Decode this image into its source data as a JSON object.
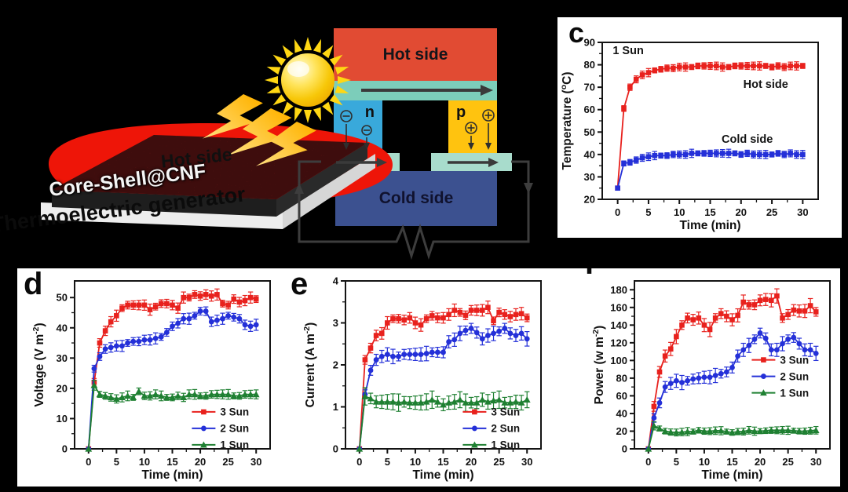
{
  "figure": {
    "panel_labels": {
      "c": "c",
      "d": "d",
      "e": "e",
      "f": "f"
    },
    "illustration": {
      "hot_side_label": "Hot side",
      "core_shell_label": "Core-Shell@CNF",
      "generator_label": "Thermoelectric generator"
    },
    "schematic": {
      "hot_label": "Hot side",
      "cold_label": "Cold side",
      "n_label": "n",
      "p_label": "p",
      "colors": {
        "hot": "#E14B33",
        "top_electrode": "#7CCDBA",
        "n_leg": "#39A9DB",
        "p_leg": "#FFC30F",
        "bottom_electrode": "#A8DCCC",
        "cold": "#3C5190",
        "wire": "#3D3D3D"
      }
    }
  },
  "chart_data": [
    {
      "id": "c",
      "type": "line",
      "xlabel": "Time (min)",
      "ylabel": {
        "pre": "Temperature (",
        "sup": "o",
        "post": "C)"
      },
      "xlim": [
        -2.5,
        32.5
      ],
      "ylim": [
        20,
        90
      ],
      "xticks": [
        0,
        5,
        10,
        15,
        20,
        25,
        30
      ],
      "yticks": [
        20,
        30,
        40,
        50,
        60,
        70,
        80,
        90
      ],
      "x_start": 0,
      "x_step": 1,
      "grid": false,
      "legend": null,
      "annotations": [
        {
          "text": "1 Sun",
          "x": -0.8,
          "y": 86.5,
          "anchor": "start"
        },
        {
          "text": "Hot side",
          "x": 24,
          "y": 71.5,
          "anchor": "middle"
        },
        {
          "text": "Cold side",
          "x": 21,
          "y": 47,
          "anchor": "middle"
        }
      ],
      "series": [
        {
          "name": "Hot side",
          "color": "#E8211D",
          "marker": "square",
          "err": 1.6,
          "values": [
            25,
            60.5,
            70,
            73.5,
            75.5,
            76.5,
            77.5,
            78,
            78.5,
            78.5,
            79,
            79,
            79,
            79.5,
            79.5,
            79.5,
            79.5,
            79,
            79,
            79.5,
            79.5,
            79.5,
            79.5,
            79.5,
            79.5,
            79,
            79.5,
            79,
            79.5,
            79.5,
            79.5
          ]
        },
        {
          "name": "Cold side",
          "color": "#2430D8",
          "marker": "square",
          "err": 1.6,
          "values": [
            25,
            36,
            36.5,
            37.5,
            38.5,
            39,
            39.5,
            39.5,
            39.5,
            40,
            40,
            40,
            40.5,
            40.5,
            40.5,
            40.5,
            40.5,
            40.5,
            40.5,
            40.5,
            40,
            40.5,
            40,
            40,
            40,
            40,
            40.5,
            40,
            40.5,
            40,
            40
          ]
        }
      ]
    },
    {
      "id": "d",
      "type": "line",
      "xlabel": "Time (min)",
      "ylabel": {
        "pre": "Voltage (V m",
        "sup": "-2",
        "post": ")"
      },
      "xlim": [
        -2.5,
        32.5
      ],
      "ylim": [
        0,
        55.5
      ],
      "xticks": [
        0,
        5,
        10,
        15,
        20,
        25,
        30
      ],
      "yticks": [
        0,
        10,
        20,
        30,
        40,
        50
      ],
      "x_start": 0,
      "x_step": 1,
      "grid": false,
      "legend": {
        "position": "inside-bottom-right"
      },
      "annotations": [],
      "series": [
        {
          "name": "3 Sun",
          "color": "#E8211D",
          "marker": "square",
          "err": 1.6,
          "values": [
            0,
            22,
            35,
            39,
            42,
            44,
            46.5,
            47.5,
            47.5,
            47.5,
            47.5,
            46,
            47,
            48,
            48,
            47.5,
            46.5,
            50,
            50,
            51,
            50.5,
            51,
            50.5,
            51,
            48,
            47.5,
            49.5,
            48.5,
            49,
            50,
            49.5
          ]
        },
        {
          "name": "2 Sun",
          "color": "#2430D8",
          "marker": "circle",
          "err": 1.6,
          "values": [
            0,
            26.5,
            30.5,
            33,
            33.5,
            34,
            34,
            35,
            35.5,
            35.5,
            36,
            36,
            36.5,
            37,
            38.5,
            40.5,
            41.5,
            43,
            43,
            44,
            45.5,
            45.5,
            42,
            42.5,
            43,
            44,
            43.5,
            43,
            41,
            40.5,
            41
          ]
        },
        {
          "name": "1 Sun",
          "color": "#1F8032",
          "marker": "triangle",
          "err": 1.4,
          "values": [
            0,
            21,
            18,
            17.5,
            17,
            16.5,
            17,
            17.5,
            17,
            19,
            17.5,
            17.5,
            18,
            17.5,
            17,
            17,
            17.5,
            17,
            18,
            18,
            17.5,
            17.5,
            18,
            18,
            18,
            18,
            17.5,
            17.5,
            18,
            18,
            18
          ]
        }
      ]
    },
    {
      "id": "e",
      "type": "line",
      "xlabel": "Time (min)",
      "ylabel": {
        "pre": "Current (A m",
        "sup": "-2",
        "post": ")"
      },
      "xlim": [
        -2.5,
        32.5
      ],
      "ylim": [
        0,
        4
      ],
      "xticks": [
        0,
        5,
        10,
        15,
        20,
        25,
        30
      ],
      "yticks": [
        0,
        1,
        2,
        3,
        4
      ],
      "x_start": 0,
      "x_step": 1,
      "grid": false,
      "legend": {
        "position": "inside-bottom-right"
      },
      "annotations": [],
      "series": [
        {
          "name": "3 Sun",
          "color": "#E8211D",
          "marker": "square",
          "err": 0.13,
          "values": [
            0,
            2.12,
            2.4,
            2.7,
            2.75,
            3,
            3.1,
            3.1,
            3.07,
            3.12,
            3,
            2.95,
            3.1,
            3.17,
            3.12,
            3.12,
            3.2,
            3.3,
            3.25,
            3.18,
            3.3,
            3.3,
            3.3,
            3.37,
            3.05,
            3.25,
            3.2,
            3.15,
            3.2,
            3.22,
            3.12
          ]
        },
        {
          "name": "2 Sun",
          "color": "#2430D8",
          "marker": "circle",
          "err": 0.15,
          "values": [
            0,
            1.3,
            1.87,
            2.12,
            2.2,
            2.25,
            2.2,
            2.2,
            2.25,
            2.25,
            2.25,
            2.25,
            2.27,
            2.3,
            2.3,
            2.3,
            2.55,
            2.6,
            2.75,
            2.82,
            2.87,
            2.77,
            2.62,
            2.7,
            2.75,
            2.8,
            2.87,
            2.75,
            2.7,
            2.75,
            2.62
          ]
        },
        {
          "name": "1 Sun",
          "color": "#1F8032",
          "marker": "triangle",
          "err": 0.18,
          "values": [
            0,
            1.25,
            1.2,
            1.12,
            1.12,
            1.12,
            1.12,
            1.1,
            1.12,
            1.1,
            1.1,
            1.1,
            1.12,
            1.17,
            1.12,
            1.05,
            1.1,
            1.12,
            1.17,
            1.1,
            1.1,
            1.1,
            1.17,
            1.12,
            1.15,
            1.17,
            1.1,
            1.1,
            1.12,
            1.1,
            1.17
          ]
        }
      ]
    },
    {
      "id": "f",
      "type": "line",
      "xlabel": "Time (min)",
      "ylabel": {
        "pre": "Power (w m",
        "sup": "-2",
        "post": ")"
      },
      "xlim": [
        -2.5,
        32.5
      ],
      "ylim": [
        0,
        190
      ],
      "xticks": [
        0,
        5,
        10,
        15,
        20,
        25,
        30
      ],
      "yticks": [
        0,
        20,
        40,
        60,
        80,
        100,
        120,
        140,
        160,
        180
      ],
      "x_start": 0,
      "x_step": 1,
      "grid": false,
      "legend": {
        "position": "inside-right-middle"
      },
      "annotations": [],
      "series": [
        {
          "name": "3 Sun",
          "color": "#E8211D",
          "marker": "square",
          "err": 7,
          "values": [
            0,
            48,
            87,
            105,
            113,
            127,
            140,
            148,
            146,
            148,
            140,
            135,
            148,
            153,
            150,
            146,
            151,
            166,
            163,
            163,
            168,
            169,
            168,
            173,
            148,
            152,
            157,
            156,
            156,
            162,
            155
          ]
        },
        {
          "name": "2 Sun",
          "color": "#2430D8",
          "marker": "circle",
          "err": 7,
          "values": [
            0,
            35,
            52,
            70,
            74,
            77,
            75,
            77,
            79,
            80,
            81,
            81,
            83,
            85,
            87,
            92,
            105,
            112,
            117,
            124,
            131,
            125,
            112,
            112,
            119,
            124,
            126,
            119,
            112,
            112,
            108
          ]
        },
        {
          "name": "1 Sun",
          "color": "#1F8032",
          "marker": "triangle",
          "err": 4,
          "values": [
            0,
            26,
            23,
            20,
            19,
            18.5,
            19,
            19.5,
            19.5,
            21,
            20,
            20,
            20.5,
            20.5,
            19.5,
            18.5,
            19.5,
            19.5,
            21,
            20,
            20,
            20.5,
            21,
            21,
            21,
            21,
            20.5,
            20,
            20,
            20.5,
            21
          ]
        }
      ]
    }
  ]
}
